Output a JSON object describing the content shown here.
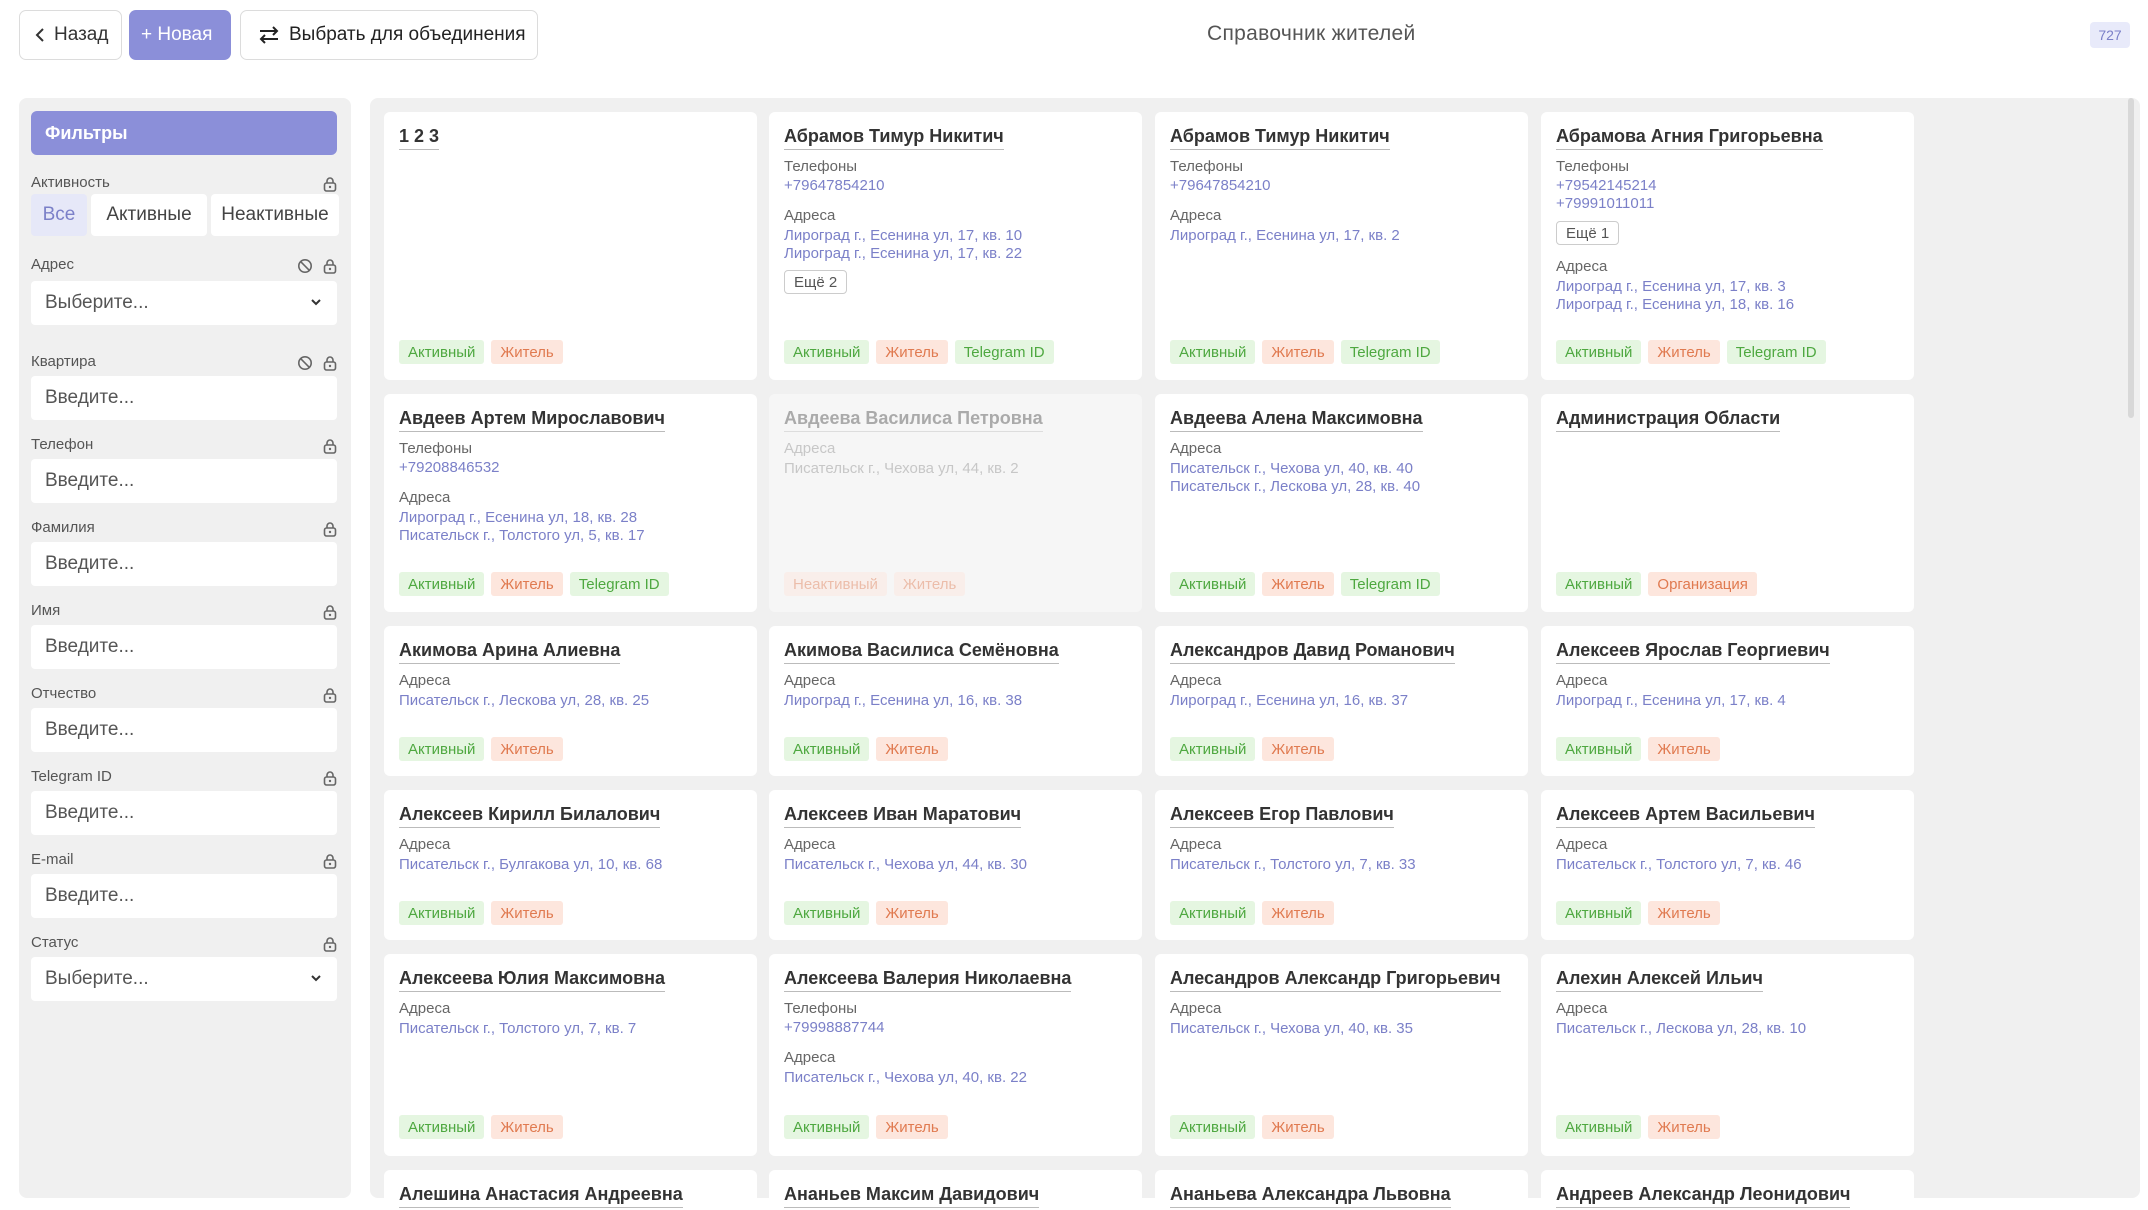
{
  "header": {
    "back_label": "Назад",
    "new_label": "+ Новая",
    "merge_label": "Выбрать для объединения",
    "title": "Справочник жителей",
    "count": "727"
  },
  "filters": {
    "title": "Фильтры",
    "activity_label": "Активность",
    "activity_options": [
      "Все",
      "Активные",
      "Неактивные"
    ],
    "address_label": "Адрес",
    "address_placeholder": "Выберите...",
    "apartment_label": "Квартира",
    "apartment_placeholder": "Введите...",
    "phone_label": "Телефон",
    "phone_placeholder": "Введите...",
    "surname_label": "Фамилия",
    "surname_placeholder": "Введите...",
    "name_label": "Имя",
    "name_placeholder": "Введите...",
    "patronymic_label": "Отчество",
    "patronymic_placeholder": "Введите...",
    "telegram_label": "Telegram ID",
    "telegram_placeholder": "Введите...",
    "email_label": "E-mail",
    "email_placeholder": "Введите...",
    "status_label": "Статус",
    "status_placeholder": "Выберите..."
  },
  "labels": {
    "phones": "Телефоны",
    "addresses": "Адреса",
    "active": "Активный",
    "inactive": "Неактивный",
    "resident": "Житель",
    "telegram": "Telegram ID",
    "organization": "Организация"
  },
  "cards": [
    {
      "name": "1 2 3"
    },
    {
      "name": "Абрамов Тимур Никитич",
      "phone1": "+79647854210",
      "addr1": "Лироград г., Есенина ул, 17, кв. 10",
      "addr2": "Лироград г., Есенина ул, 17, кв. 22",
      "more": "Ещё 2"
    },
    {
      "name": "Абрамов Тимур Никитич",
      "phone1": "+79647854210",
      "addr1": "Лироград г., Есенина ул, 17, кв. 2"
    },
    {
      "name": "Абрамова Агния Григорьевна",
      "phone1": "+79542145214",
      "phone2": "+79991011011",
      "more": "Ещё 1",
      "addr1": "Лироград г., Есенина ул, 17, кв. 3",
      "addr2": "Лироград г., Есенина ул, 18, кв. 16"
    },
    {
      "name": "Авдеев Артем Мирославович",
      "phone1": "+79208846532",
      "addr1": "Лироград г., Есенина ул, 18, кв. 28",
      "addr2": "Писательск г., Толстого ул, 5, кв. 17"
    },
    {
      "name": "Авдеева Василиса Петровна",
      "addr1": "Писательск г., Чехова ул, 44, кв. 2"
    },
    {
      "name": "Авдеева Алена Максимовна",
      "addr1": "Писательск г., Чехова ул, 40, кв. 40",
      "addr2": "Писательск г., Лескова ул, 28, кв. 40"
    },
    {
      "name": "Администрация Области"
    },
    {
      "name": "Акимова Арина Алиевна",
      "addr1": "Писательск г., Лескова ул, 28, кв. 25"
    },
    {
      "name": "Акимова Василиса Семёновна",
      "addr1": "Лироград г., Есенина ул, 16, кв. 38"
    },
    {
      "name": "Александров Давид Романович",
      "addr1": "Лироград г., Есенина ул, 16, кв. 37"
    },
    {
      "name": "Алексеев Ярослав Георгиевич",
      "addr1": "Лироград г., Есенина ул, 17, кв. 4"
    },
    {
      "name": "Алексеев Кирилл Билалович",
      "addr1": "Писательск г., Булгакова ул, 10, кв. 68"
    },
    {
      "name": "Алексеев Иван Маратович",
      "addr1": "Писательск г., Чехова ул, 44, кв. 30"
    },
    {
      "name": "Алексеев Егор Павлович",
      "addr1": "Писательск г., Толстого ул, 7, кв. 33"
    },
    {
      "name": "Алексеев Артем Васильевич",
      "addr1": "Писательск г., Толстого ул, 7, кв. 46"
    },
    {
      "name": "Алексеева Юлия Максимовна",
      "addr1": "Писательск г., Толстого ул, 7, кв. 7"
    },
    {
      "name": "Алексеева Валерия Николаевна",
      "phone1": "+79998887744",
      "addr1": "Писательск г., Чехова ул, 40, кв. 22"
    },
    {
      "name": "Алесандров Александр Григорьевич",
      "addr1": "Писательск г., Чехова ул, 40, кв. 35"
    },
    {
      "name": "Алехин Алексей Ильич",
      "addr1": "Писательск г., Лескова ул, 28, кв. 10"
    },
    {
      "name": "Алешина Анастасия Андреевна"
    },
    {
      "name": "Ананьев Максим Давидович"
    },
    {
      "name": "Ананьева Александра Львовна"
    },
    {
      "name": "Андреев Александр Леонидович"
    }
  ],
  "colors": {
    "accent": "#8b8fd9",
    "link": "#7b80c8",
    "tag_green_bg": "#e5f6e1",
    "tag_green_text": "#4ea840",
    "tag_orange_bg": "#fde6dd",
    "tag_orange_text": "#e07a50"
  }
}
